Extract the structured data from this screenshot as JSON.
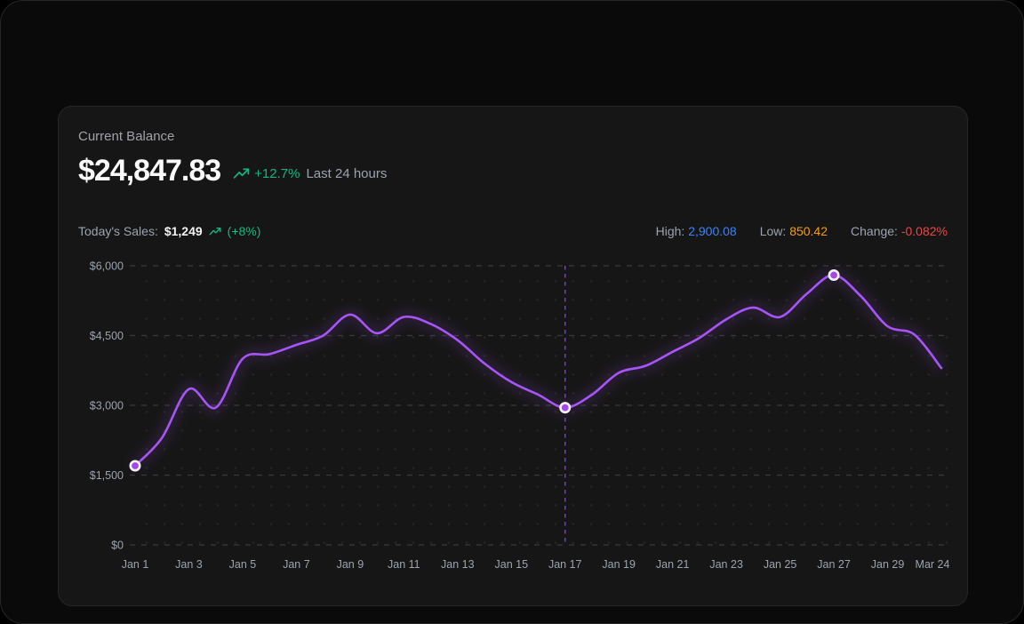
{
  "card": {
    "balance_label": "Current Balance",
    "balance_value": "$24,847.83",
    "balance_change": "+12.7%",
    "balance_period": "Last 24 hours",
    "sales_label": "Today's Sales:",
    "sales_value": "$1,249",
    "sales_change": "(+8%)",
    "high_label": "High:",
    "high_value": "2,900.08",
    "low_label": "Low:",
    "low_value": "850.42",
    "change_label": "Change:",
    "change_value": "-0.082%"
  },
  "colors": {
    "green": "#10b981",
    "blue": "#3b82f6",
    "orange": "#f59e0b",
    "red": "#ef4444",
    "line": "#a855f7",
    "vline": "#7c3aed",
    "grid": "#3a3a3a",
    "marker_fill": "#a34ae6",
    "marker_ring": "#f4f1f7"
  },
  "chart_data": {
    "type": "line",
    "title": "",
    "xlabel": "",
    "ylabel": "",
    "ylim": [
      0,
      6000
    ],
    "grid": "dashed horizontal gridlines + faint dot matrix",
    "legend_position": "none",
    "y_ticks": [
      {
        "label": "$0",
        "value": 0
      },
      {
        "label": "$1,500",
        "value": 1500
      },
      {
        "label": "$3,000",
        "value": 3000
      },
      {
        "label": "$4,500",
        "value": 4500
      },
      {
        "label": "$6,000",
        "value": 6000
      }
    ],
    "x_tick_labels": [
      {
        "label": "Jan 1",
        "index": 0
      },
      {
        "label": "Jan 3",
        "index": 2
      },
      {
        "label": "Jan 5",
        "index": 4
      },
      {
        "label": "Jan 7",
        "index": 6
      },
      {
        "label": "Jan 9",
        "index": 8
      },
      {
        "label": "Jan 11",
        "index": 10
      },
      {
        "label": "Jan 13",
        "index": 12
      },
      {
        "label": "Jan 15",
        "index": 14
      },
      {
        "label": "Jan 17",
        "index": 16
      },
      {
        "label": "Jan 19",
        "index": 18
      },
      {
        "label": "Jan 21",
        "index": 20
      },
      {
        "label": "Jan 23",
        "index": 22
      },
      {
        "label": "Jan 25",
        "index": 24
      },
      {
        "label": "Jan 27",
        "index": 26
      },
      {
        "label": "Jan 29",
        "index": 28
      },
      {
        "label": "Mar 24",
        "index": 30
      }
    ],
    "values": [
      1700,
      2300,
      3350,
      2950,
      4000,
      4100,
      4300,
      4500,
      4950,
      4550,
      4900,
      4750,
      4400,
      3900,
      3500,
      3230,
      2950,
      3230,
      3700,
      3850,
      4150,
      4450,
      4850,
      5100,
      4900,
      5400,
      5800,
      5350,
      4700,
      4520,
      3800
    ],
    "marker_indices": [
      0,
      16,
      26
    ],
    "vline_index": 16
  }
}
